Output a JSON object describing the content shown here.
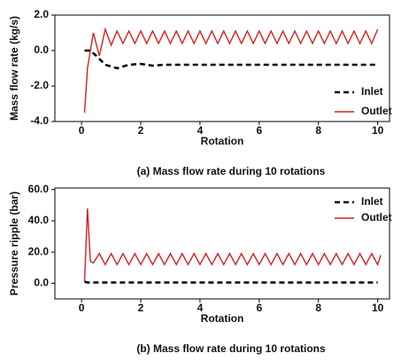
{
  "chart_data": [
    {
      "type": "line",
      "title": "(a) Mass flow rate during 10 rotations",
      "xlabel": "Rotation",
      "ylabel": "Mass flow rate (kg/s)",
      "xlim": [
        -0.9,
        10.4
      ],
      "xticks": [
        0,
        2,
        4,
        6,
        8,
        10
      ],
      "ylim": [
        -4,
        2
      ],
      "yticks": [
        {
          "value": 2,
          "label": "2.0"
        },
        {
          "value": 0,
          "label": "0.0"
        },
        {
          "value": -2,
          "label": "-2.0"
        },
        {
          "value": -4,
          "label": "-4.0"
        }
      ],
      "legend": "lower right",
      "series": [
        {
          "name": "Inlet",
          "color": "#000000",
          "dash": true,
          "x": [
            0.1,
            0.3,
            0.5,
            0.8,
            1.2,
            1.6,
            2.0,
            2.4,
            2.8,
            3.2,
            4,
            6,
            8,
            10
          ],
          "values": [
            0,
            0,
            -0.3,
            -0.8,
            -1.0,
            -0.8,
            -0.75,
            -0.85,
            -0.8,
            -0.8,
            -0.8,
            -0.8,
            -0.8,
            -0.8
          ]
        },
        {
          "name": "Outlet",
          "color": "#d42020",
          "dash": false,
          "x": [
            0.1,
            0.2,
            0.3,
            0.4,
            0.6,
            0.8,
            1.0,
            1.2,
            1.4,
            1.6,
            1.8,
            2.0,
            2.2,
            2.4,
            2.6,
            2.8,
            3.0,
            3.2,
            3.4,
            3.6,
            3.8,
            4.0,
            4.2,
            4.4,
            4.6,
            4.8,
            5.0,
            5.2,
            5.4,
            5.6,
            5.8,
            6.0,
            6.2,
            6.4,
            6.6,
            6.8,
            7.0,
            7.2,
            7.4,
            7.6,
            7.8,
            8.0,
            8.2,
            8.4,
            8.6,
            8.8,
            9.0,
            9.2,
            9.4,
            9.6,
            9.8,
            10.0
          ],
          "values": [
            -3.5,
            -1.0,
            0.0,
            1.0,
            -0.3,
            1.2,
            0.3,
            1.1,
            0.4,
            1.1,
            0.4,
            1.1,
            0.4,
            1.1,
            0.4,
            1.1,
            0.4,
            1.1,
            0.4,
            1.1,
            0.4,
            1.1,
            0.4,
            1.1,
            0.4,
            1.1,
            0.4,
            1.1,
            0.4,
            1.1,
            0.4,
            1.1,
            0.4,
            1.1,
            0.4,
            1.1,
            0.4,
            1.1,
            0.4,
            1.1,
            0.4,
            1.1,
            0.4,
            1.1,
            0.4,
            1.1,
            0.4,
            1.1,
            0.4,
            1.1,
            0.4,
            1.2
          ]
        }
      ]
    },
    {
      "type": "line",
      "title": "(b) Mass flow rate during 10 rotations",
      "xlabel": "Rotation",
      "ylabel": "Pressure ripple (bar)",
      "xlim": [
        -0.9,
        10.4
      ],
      "xticks": [
        0,
        2,
        4,
        6,
        8,
        10
      ],
      "ylim": [
        -10,
        61
      ],
      "yticks": [
        {
          "value": 60,
          "label": "60.0"
        },
        {
          "value": 40,
          "label": "40.0"
        },
        {
          "value": 20,
          "label": "20.0"
        },
        {
          "value": 0,
          "label": "0.0"
        }
      ],
      "legend": "upper right",
      "series": [
        {
          "name": "Inlet",
          "color": "#000000",
          "dash": true,
          "x": [
            0.1,
            0.2,
            0.4,
            10
          ],
          "values": [
            1,
            0.5,
            0.5,
            0.5
          ]
        },
        {
          "name": "Outlet",
          "color": "#d42020",
          "dash": false,
          "x": [
            0.1,
            0.2,
            0.3,
            0.4,
            0.6,
            0.8,
            1.0,
            1.2,
            1.4,
            1.6,
            1.8,
            2.0,
            2.2,
            2.4,
            2.6,
            2.8,
            3.0,
            3.2,
            3.4,
            3.6,
            3.8,
            4.0,
            4.2,
            4.4,
            4.6,
            4.8,
            5.0,
            5.2,
            5.4,
            5.6,
            5.8,
            6.0,
            6.2,
            6.4,
            6.6,
            6.8,
            7.0,
            7.2,
            7.4,
            7.6,
            7.8,
            8.0,
            8.2,
            8.4,
            8.6,
            8.8,
            9.0,
            9.2,
            9.4,
            9.6,
            9.8,
            10.0,
            10.1
          ],
          "values": [
            1,
            48,
            14,
            13,
            19,
            12,
            19,
            12,
            19,
            12,
            19,
            12,
            19,
            12,
            19,
            12,
            19,
            12,
            19,
            12,
            19,
            12,
            19,
            12,
            19,
            12,
            19,
            12,
            19,
            12,
            19,
            12,
            19,
            12,
            19,
            12,
            19,
            12,
            19,
            12,
            19,
            12,
            19,
            12,
            19,
            12,
            19,
            12,
            19,
            12,
            19,
            12,
            18
          ]
        }
      ]
    }
  ]
}
